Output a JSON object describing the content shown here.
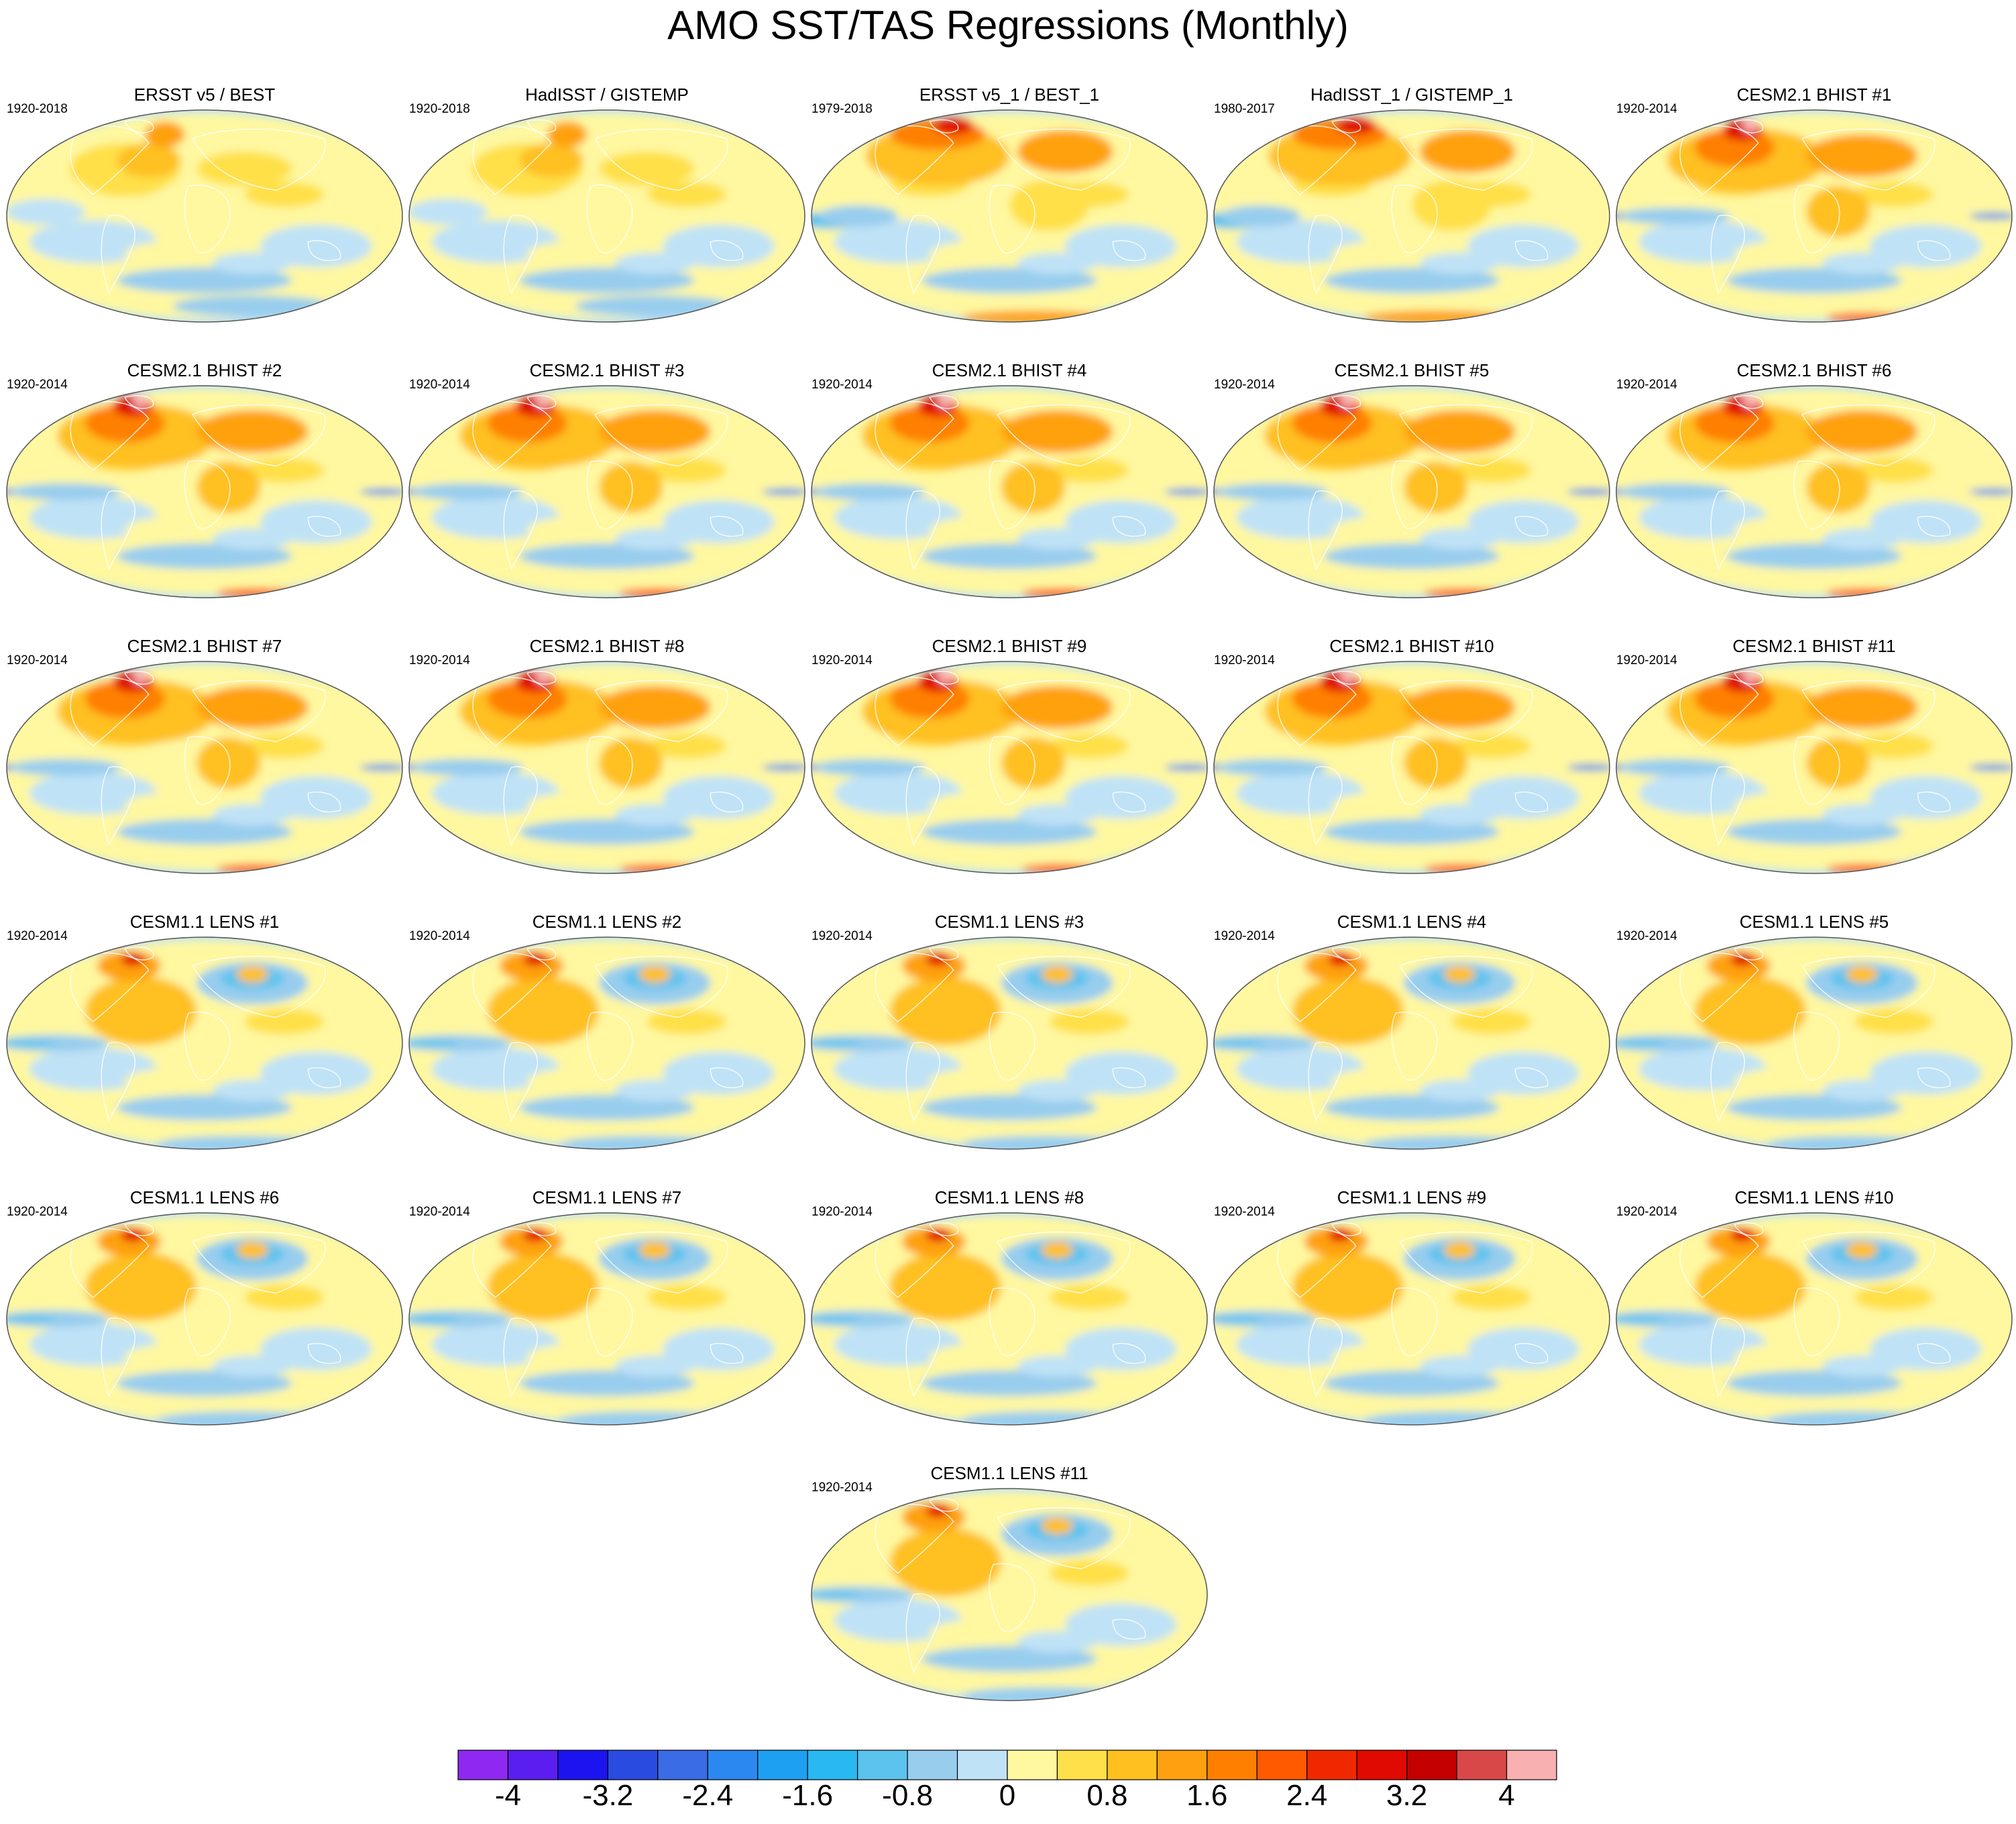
{
  "title": "AMO SST/TAS Regressions (Monthly)",
  "panels": [
    {
      "title": "ERSST v5 / BEST",
      "period": "1920-2018",
      "pattern": "obs"
    },
    {
      "title": "HadISST / GISTEMP",
      "period": "1920-2018",
      "pattern": "obs"
    },
    {
      "title": "ERSST v5_1 / BEST_1",
      "period": "1979-2018",
      "pattern": "obs-recent"
    },
    {
      "title": "HadISST_1 / GISTEMP_1",
      "period": "1980-2017",
      "pattern": "obs-recent"
    },
    {
      "title": "CESM2.1 BHIST #1",
      "period": "1920-2014",
      "pattern": "cesm2"
    },
    {
      "title": "CESM2.1 BHIST #2",
      "period": "1920-2014",
      "pattern": "cesm2"
    },
    {
      "title": "CESM2.1 BHIST #3",
      "period": "1920-2014",
      "pattern": "cesm2"
    },
    {
      "title": "CESM2.1 BHIST #4",
      "period": "1920-2014",
      "pattern": "cesm2"
    },
    {
      "title": "CESM2.1 BHIST #5",
      "period": "1920-2014",
      "pattern": "cesm2"
    },
    {
      "title": "CESM2.1 BHIST #6",
      "period": "1920-2014",
      "pattern": "cesm2"
    },
    {
      "title": "CESM2.1 BHIST #7",
      "period": "1920-2014",
      "pattern": "cesm2"
    },
    {
      "title": "CESM2.1 BHIST #8",
      "period": "1920-2014",
      "pattern": "cesm2"
    },
    {
      "title": "CESM2.1 BHIST #9",
      "period": "1920-2014",
      "pattern": "cesm2"
    },
    {
      "title": "CESM2.1 BHIST #10",
      "period": "1920-2014",
      "pattern": "cesm2"
    },
    {
      "title": "CESM2.1 BHIST #11",
      "period": "1920-2014",
      "pattern": "cesm2"
    },
    {
      "title": "CESM1.1 LENS #1",
      "period": "1920-2014",
      "pattern": "lens"
    },
    {
      "title": "CESM1.1 LENS #2",
      "period": "1920-2014",
      "pattern": "lens"
    },
    {
      "title": "CESM1.1 LENS #3",
      "period": "1920-2014",
      "pattern": "lens"
    },
    {
      "title": "CESM1.1 LENS #4",
      "period": "1920-2014",
      "pattern": "lens"
    },
    {
      "title": "CESM1.1 LENS #5",
      "period": "1920-2014",
      "pattern": "lens"
    },
    {
      "title": "CESM1.1 LENS #6",
      "period": "1920-2014",
      "pattern": "lens"
    },
    {
      "title": "CESM1.1 LENS #7",
      "period": "1920-2014",
      "pattern": "lens"
    },
    {
      "title": "CESM1.1 LENS #8",
      "period": "1920-2014",
      "pattern": "lens"
    },
    {
      "title": "CESM1.1 LENS #9",
      "period": "1920-2014",
      "pattern": "lens"
    },
    {
      "title": "CESM1.1 LENS #10",
      "period": "1920-2014",
      "pattern": "lens"
    },
    {
      "title": "CESM1.1 LENS #11",
      "period": "1920-2014",
      "pattern": "lens"
    }
  ],
  "colorbar": {
    "colors": [
      "#8f28f0",
      "#5a1ef0",
      "#1b14f0",
      "#2a4be0",
      "#3a6ce6",
      "#2b88f0",
      "#1ea0f2",
      "#28b8f2",
      "#5cc2ee",
      "#98cdee",
      "#bfe2f6",
      "#fff8a0",
      "#ffe04a",
      "#ffc020",
      "#ffa010",
      "#ff8000",
      "#ff5a00",
      "#f02800",
      "#e00a00",
      "#c40000",
      "#d84848",
      "#f8b0b0"
    ],
    "tick_labels": [
      "-4",
      "-3.2",
      "-2.4",
      "-1.6",
      "-0.8",
      "0",
      "0.8",
      "1.6",
      "2.4",
      "3.2",
      "4"
    ]
  },
  "style": {
    "map_border": "#555555",
    "coastline": "#ffffff"
  }
}
